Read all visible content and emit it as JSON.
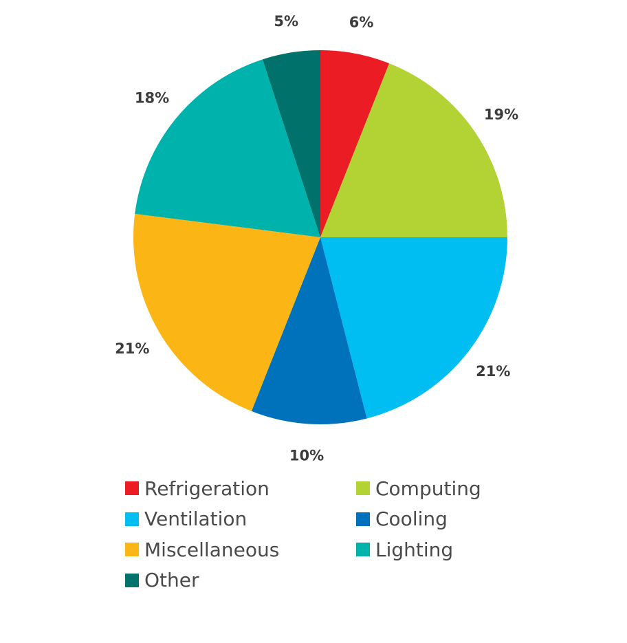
{
  "chart_data": {
    "type": "pie",
    "start_angle_deg": 0,
    "direction": "clockwise",
    "slices": [
      {
        "name": "Refrigeration",
        "value": 6,
        "label": "6%",
        "color": "#ec1c24"
      },
      {
        "name": "Computing",
        "value": 19,
        "label": "19%",
        "color": "#b3d335"
      },
      {
        "name": "Ventilation",
        "value": 21,
        "label": "21%",
        "color": "#00bdf2"
      },
      {
        "name": "Cooling",
        "value": 10,
        "label": "10%",
        "color": "#0072bb"
      },
      {
        "name": "Miscellaneous",
        "value": 21,
        "label": "21%",
        "color": "#fbb514"
      },
      {
        "name": "Lighting",
        "value": 18,
        "label": "18%",
        "color": "#00b2ac"
      },
      {
        "name": "Other",
        "value": 5,
        "label": "5%",
        "color": "#00716b"
      }
    ],
    "legend_position": "bottom",
    "legend_order": [
      "Refrigeration",
      "Computing",
      "Ventilation",
      "Cooling",
      "Miscellaneous",
      "Lighting",
      "Other"
    ]
  }
}
